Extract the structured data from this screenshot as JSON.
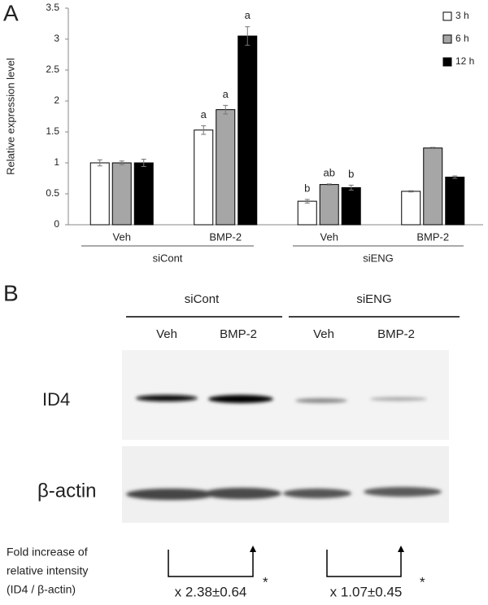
{
  "panel_labels": [
    "A",
    "B"
  ],
  "chart_data": {
    "type": "bar",
    "y_label": "Relative expression level",
    "categories": [
      "Veh",
      "BMP-2",
      "Veh",
      "BMP-2"
    ],
    "group_labels": [
      "siCont",
      "siENG"
    ],
    "ylim": [
      0,
      3.5
    ],
    "yticks": [
      0,
      0.5,
      1,
      1.5,
      2,
      2.5,
      3,
      3.5
    ],
    "legend": "top-right",
    "series": [
      {
        "name": "3 h",
        "color": "#ffffff",
        "values": [
          1.0,
          1.53,
          0.38,
          0.54
        ],
        "errors": [
          0.05,
          0.07,
          0.03,
          0.01
        ],
        "annotations": [
          null,
          "a",
          "b",
          null
        ]
      },
      {
        "name": "6 h",
        "color": "#a6a6a6",
        "values": [
          1.0,
          1.86,
          0.65,
          1.24
        ],
        "errors": [
          0.03,
          0.07,
          0.01,
          0.01
        ],
        "annotations": [
          null,
          "a",
          "ab",
          null
        ]
      },
      {
        "name": "12 h",
        "color": "#000000",
        "values": [
          1.0,
          3.05,
          0.6,
          0.77
        ],
        "errors": [
          0.06,
          0.15,
          0.04,
          0.02
        ],
        "annotations": [
          null,
          "a",
          "b",
          null
        ]
      }
    ]
  },
  "blot": {
    "groups": [
      "siCont",
      "siENG"
    ],
    "lanes": [
      "Veh",
      "BMP-2",
      "Veh",
      "BMP-2"
    ],
    "rows": [
      "ID4",
      "β-actin"
    ],
    "footer": [
      "Fold increase of",
      "relative intensity",
      "(ID4 / β-actin)"
    ],
    "folds": [
      "x 2.38±0.64",
      "x 1.07±0.45"
    ],
    "significance": [
      "*",
      "*"
    ]
  }
}
